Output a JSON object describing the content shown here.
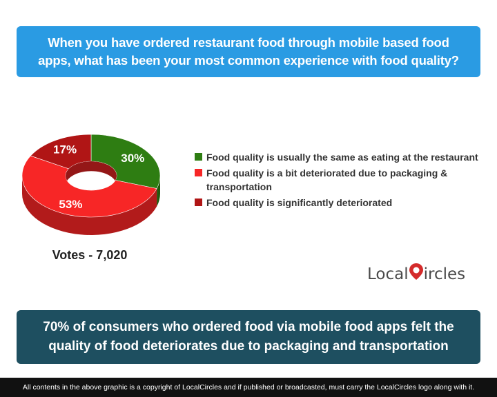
{
  "question": "When you have ordered restaurant food through mobile based food apps, what has been your most common experience with food quality?",
  "chart_data": {
    "type": "pie",
    "slices": [
      {
        "label": "Food quality is usually the same as eating at the restaurant",
        "value": 30,
        "display": "30%",
        "color": "#2e7d12"
      },
      {
        "label": "Food quality is a bit deteriorated due to packaging & transportation",
        "value": 53,
        "display": "53%",
        "color": "#f72626"
      },
      {
        "label": "Food quality is significantly deteriorated",
        "value": 17,
        "display": "17%",
        "color": "#b01515"
      }
    ],
    "legend_position": "right",
    "style": "3d-donut"
  },
  "votes": "Votes - 7,020",
  "logo": {
    "prefix": "Local",
    "suffix": "ircles"
  },
  "finding": "70% of consumers who ordered food via mobile food apps felt the quality of food deteriorates due to packaging and transportation",
  "footer": "All contents in the above graphic is a copyright of LocalCircles and if published or broadcasted, must carry the LocalCircles logo along with it.",
  "colors": {
    "question_bg": "#2a9be3",
    "finding_bg": "#1e4f60",
    "footer_bg": "#111111",
    "logo_accent": "#d42b2b"
  }
}
